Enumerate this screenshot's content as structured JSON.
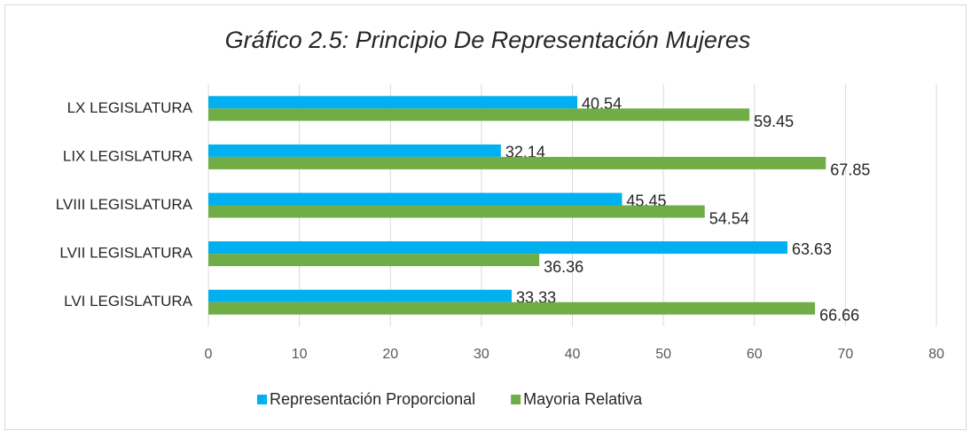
{
  "chart_data": {
    "type": "hbar",
    "title": "Gráfico 2.5: Principio De Representación Mujeres",
    "categories": [
      "LX LEGISLATURA",
      "LIX LEGISLATURA",
      "LVIII LEGISLATURA",
      "LVII LEGISLATURA",
      "LVI LEGISLATURA"
    ],
    "series": [
      {
        "name": "Representación Proporcional",
        "color": "#00b0f0",
        "values": [
          40.54,
          32.14,
          45.45,
          63.63,
          33.33
        ]
      },
      {
        "name": "Mayoria Relativa",
        "color": "#70ad47",
        "values": [
          59.45,
          67.85,
          54.54,
          36.36,
          66.66
        ]
      }
    ],
    "xlim": [
      0,
      80
    ],
    "xticks": [
      0,
      10,
      20,
      30,
      40,
      50,
      60,
      70,
      80
    ],
    "grid": true,
    "legend": "bottom"
  }
}
